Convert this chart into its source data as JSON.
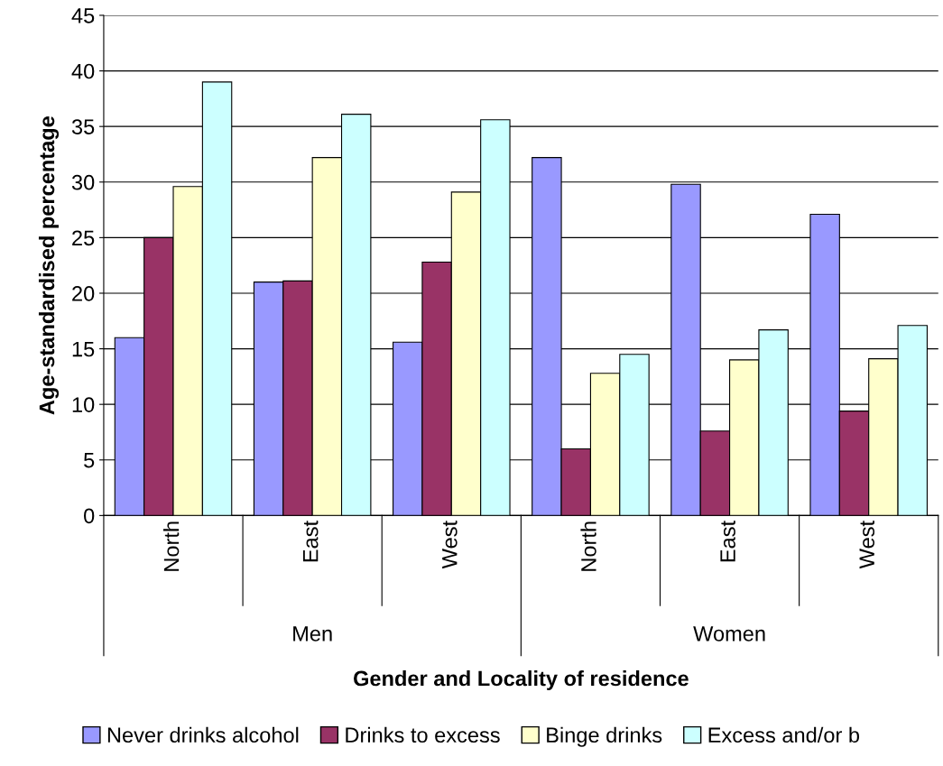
{
  "chart_data": {
    "type": "bar",
    "xlabel": "Gender and Locality of residence",
    "ylabel": "Age-standardised percentage",
    "categories": [
      "North",
      "East",
      "West",
      "North",
      "East",
      "West"
    ],
    "series": [
      {
        "name": "Never drinks alcohol",
        "color": "#9999ff",
        "values": [
          16,
          21,
          15.6,
          32.2,
          29.8,
          27.1
        ]
      },
      {
        "name": "Drinks to excess",
        "color": "#993366",
        "values": [
          25,
          21.1,
          22.8,
          6,
          7.6,
          9.4
        ]
      },
      {
        "name": "Binge drinks",
        "color": "#ffffcc",
        "values": [
          29.6,
          32.2,
          29.1,
          12.8,
          14,
          14.1
        ]
      },
      {
        "name": "Excess and/or b",
        "color": "#ccffff",
        "values": [
          39,
          36.1,
          35.6,
          14.5,
          16.7,
          17.1
        ]
      }
    ],
    "annotations": [
      "Men",
      "Women"
    ],
    "ylim": [
      0,
      45
    ],
    "yticks": [
      0,
      5,
      10,
      15,
      20,
      25,
      30,
      35,
      40,
      45
    ],
    "grid": "y",
    "legend": "bottom"
  }
}
